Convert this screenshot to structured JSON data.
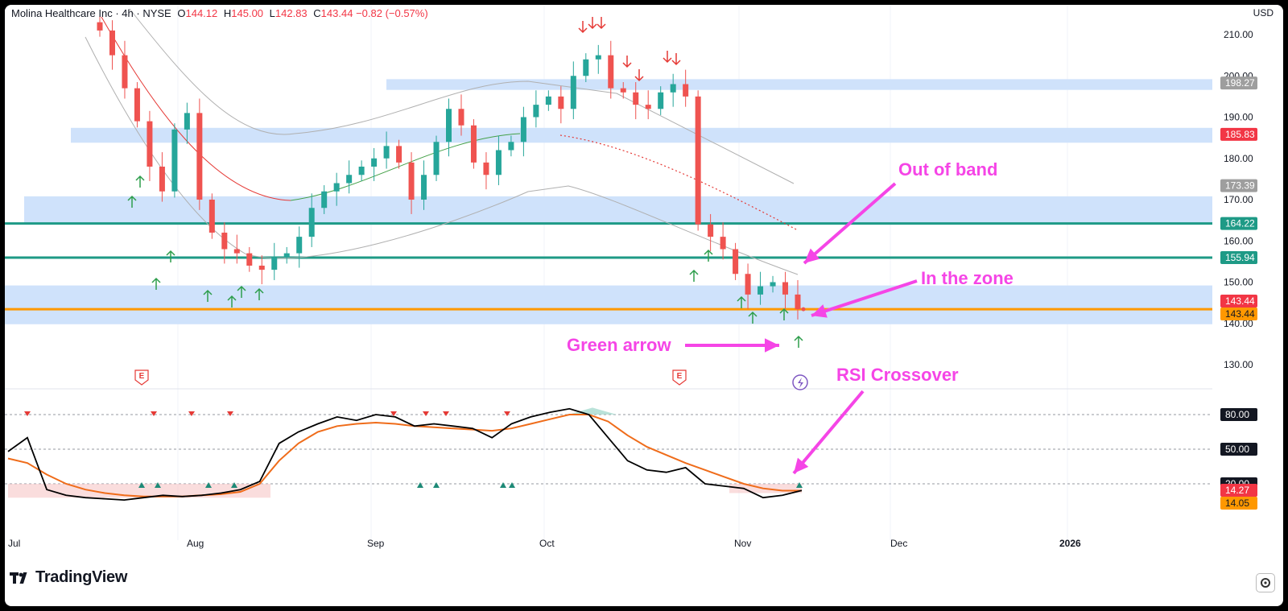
{
  "header": {
    "symbol": "Molina Healthcare Inc",
    "interval": "4h",
    "exchange": "NYSE",
    "open_label": "O",
    "open": "144.12",
    "high_label": "H",
    "high": "145.00",
    "low_label": "L",
    "low": "142.83",
    "close_label": "C",
    "close": "143.44",
    "change": "−0.82 (−0.57%)"
  },
  "currency": "USD",
  "logo_text": "TradingView",
  "colors": {
    "up": "#26a69a",
    "down": "#ef5350",
    "zone": "#cfe2fb",
    "teal_line": "#1e9a86",
    "orange_line": "#ff9800",
    "annotation": "#f545e6",
    "rsi_line": "#000000",
    "rsi_ma": "#ef6c1a"
  },
  "annotations": {
    "out_of_band": "Out of band",
    "in_the_zone": "In the zone",
    "green_arrow": "Green arrow",
    "rsi_crossover": "RSI Crossover"
  },
  "chart_data": [
    {
      "type": "candlestick",
      "title": "Molina Healthcare Inc · 4h · NYSE",
      "ylim": [
        126,
        214
      ],
      "y_ticks": [
        "210.00",
        "200.00",
        "190.00",
        "180.00",
        "170.00",
        "160.00",
        "150.00",
        "140.00",
        "130.00"
      ],
      "x_ticks": [
        "Jul",
        "Aug",
        "Sep",
        "Oct",
        "Nov",
        "Dec",
        "2026"
      ],
      "price_labels": [
        {
          "value": "198.27",
          "style": "gray"
        },
        {
          "value": "185.83",
          "style": "red"
        },
        {
          "value": "173.39",
          "style": "gray"
        },
        {
          "value": "164.22",
          "style": "teal"
        },
        {
          "value": "155.94",
          "style": "teal"
        },
        {
          "value": "143.44",
          "style": "red"
        },
        {
          "value": "143.44",
          "style": "orange"
        }
      ],
      "zones": [
        {
          "from": 196.6,
          "to": 199.2,
          "start": "Sep"
        },
        {
          "from": 183.8,
          "to": 187.4,
          "start": "Jul"
        },
        {
          "from": 164.4,
          "to": 170.8,
          "start": "Jul"
        },
        {
          "from": 139.8,
          "to": 149.2,
          "start": "Jul"
        }
      ],
      "horizontal_lines": [
        {
          "value": 164.22,
          "color": "teal"
        },
        {
          "value": 155.94,
          "color": "teal"
        },
        {
          "value": 143.44,
          "color": "orange"
        }
      ],
      "close_path": [
        211,
        205,
        197,
        189,
        178,
        172,
        187,
        191,
        170,
        162,
        158,
        157,
        154,
        153,
        156,
        157,
        161,
        168,
        172,
        174,
        176,
        178,
        180,
        183,
        179,
        170,
        176,
        184,
        192,
        188,
        179,
        176,
        182,
        184,
        190,
        193,
        195,
        192,
        200,
        204,
        205,
        197,
        196,
        193,
        192,
        196,
        198,
        195,
        164,
        161,
        158,
        152,
        147,
        149,
        150,
        147,
        143.44
      ],
      "signal_arrows_up": 18,
      "signal_arrows_down": 9,
      "earnings_marker": "E"
    },
    {
      "type": "line",
      "title": "RSI",
      "ylim": [
        0,
        100
      ],
      "y_ticks": [
        "80.00",
        "50.00",
        "20.00"
      ],
      "value_labels": [
        {
          "value": "80.00",
          "style": "dark"
        },
        {
          "value": "50.00",
          "style": "dark"
        },
        {
          "value": "20.00",
          "style": "dark"
        },
        {
          "value": "14.27",
          "style": "red"
        },
        {
          "value": "14.05",
          "style": "orange"
        }
      ],
      "series": [
        {
          "values": [
            48,
            60,
            15,
            10,
            8,
            7,
            6,
            8,
            10,
            9,
            10,
            12,
            15,
            22,
            55,
            65,
            72,
            78,
            75,
            80,
            78,
            70,
            72,
            70,
            68,
            60,
            72,
            78,
            82,
            85,
            80,
            60,
            40,
            32,
            30,
            34,
            20,
            18,
            16,
            8,
            10,
            14.27
          ]
        },
        {
          "values": [
            42,
            38,
            28,
            20,
            15,
            12,
            10,
            9,
            9,
            9,
            10,
            11,
            13,
            20,
            40,
            55,
            65,
            70,
            72,
            73,
            72,
            70,
            69,
            68,
            67,
            66,
            68,
            72,
            76,
            80,
            80,
            74,
            62,
            52,
            45,
            38,
            32,
            26,
            20,
            16,
            14.05,
            14.05
          ]
        }
      ],
      "levels": [
        80,
        50,
        20
      ]
    }
  ]
}
